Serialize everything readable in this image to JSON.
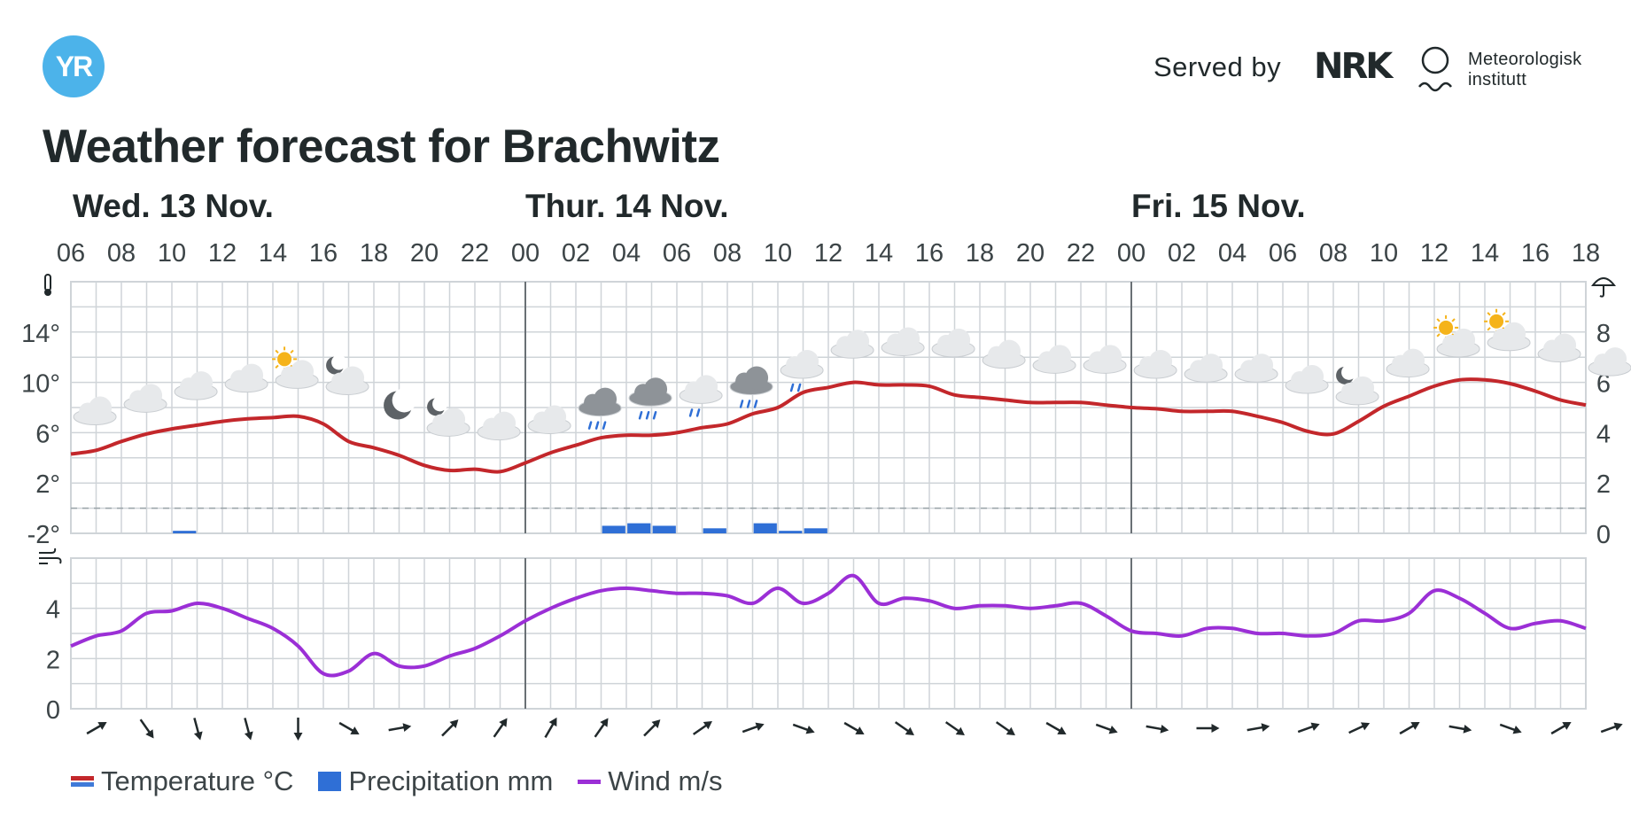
{
  "brand": {
    "logo": "YR",
    "served_by": "Served by",
    "nrk": "NRK",
    "met": [
      "Meteorologisk",
      "institutt"
    ]
  },
  "title": "Weather forecast for Brachwitz",
  "days": [
    {
      "label": "Wed. 13 Nov.",
      "start_hour_index": 0
    },
    {
      "label": "Thur. 14 Nov.",
      "start_hour_index": 18
    },
    {
      "label": "Fri. 15 Nov.",
      "start_hour_index": 42
    }
  ],
  "legend": {
    "temperature": "Temperature °C",
    "precipitation": "Precipitation mm",
    "wind": "Wind m/s"
  },
  "colors": {
    "temperature": "#c3272b",
    "temperature_cold": "#3f7ad8",
    "precipitation": "#2f6fd6",
    "wind": "#9b2fd6",
    "grid": "#cfd4d8",
    "day_line": "#6a7075"
  },
  "chart_data": [
    {
      "type": "line",
      "title": "",
      "x": [
        "06",
        "07",
        "08",
        "09",
        "10",
        "11",
        "12",
        "13",
        "14",
        "15",
        "16",
        "17",
        "18",
        "19",
        "20",
        "21",
        "22",
        "23",
        "00",
        "01",
        "02",
        "03",
        "04",
        "05",
        "06",
        "07",
        "08",
        "09",
        "10",
        "11",
        "12",
        "13",
        "14",
        "15",
        "16",
        "17",
        "18",
        "19",
        "20",
        "21",
        "22",
        "23",
        "00",
        "01",
        "02",
        "03",
        "04",
        "05",
        "06",
        "07",
        "08",
        "09",
        "10",
        "11",
        "12",
        "13",
        "14",
        "15",
        "16",
        "17",
        "18"
      ],
      "x_tick_labels": [
        "06",
        "08",
        "10",
        "12",
        "14",
        "16",
        "18",
        "20",
        "22",
        "00",
        "02",
        "04",
        "06",
        "08",
        "10",
        "12",
        "14",
        "16",
        "18",
        "20",
        "22",
        "00",
        "02",
        "04",
        "06",
        "08",
        "10",
        "12",
        "14",
        "16",
        "18"
      ],
      "y_left": {
        "unit": "°",
        "ticks": [
          14,
          10,
          6,
          2,
          -2
        ],
        "range": [
          -2,
          18
        ]
      },
      "y_right": {
        "unit": "mm",
        "ticks": [
          8,
          6,
          4,
          2,
          0
        ],
        "range": [
          0,
          10
        ]
      },
      "series": [
        {
          "name": "Temperature °C",
          "axis": "left",
          "values": [
            4.3,
            4.6,
            5.3,
            5.9,
            6.3,
            6.6,
            6.9,
            7.1,
            7.2,
            7.3,
            6.7,
            5.3,
            4.8,
            4.2,
            3.4,
            3.0,
            3.1,
            2.9,
            3.6,
            4.4,
            5.0,
            5.6,
            5.8,
            5.8,
            6.0,
            6.4,
            6.7,
            7.5,
            8.0,
            9.2,
            9.6,
            10.0,
            9.8,
            9.8,
            9.7,
            9.0,
            8.8,
            8.6,
            8.4,
            8.4,
            8.4,
            8.2,
            8.0,
            7.9,
            7.7,
            7.7,
            7.7,
            7.3,
            6.8,
            6.1,
            5.9,
            6.9,
            8.1,
            8.9,
            9.7,
            10.2,
            10.2,
            9.9,
            9.3,
            8.6,
            8.2
          ]
        },
        {
          "name": "Precipitation mm",
          "axis": "right",
          "type": "bar",
          "values": [
            0,
            0,
            0,
            0,
            0.1,
            0,
            0,
            0,
            0,
            0,
            0,
            0,
            0,
            0,
            0,
            0,
            0,
            0,
            0,
            0,
            0,
            0.3,
            0.4,
            0.3,
            0,
            0.2,
            0,
            0.4,
            0.1,
            0.2,
            0,
            0,
            0,
            0,
            0,
            0,
            0,
            0,
            0,
            0,
            0,
            0,
            0,
            0,
            0,
            0,
            0,
            0,
            0,
            0,
            0,
            0,
            0,
            0,
            0,
            0,
            0,
            0,
            0,
            0,
            0
          ]
        }
      ],
      "symbols": [
        "cloudy",
        "cloudy",
        "cloudy",
        "cloudy",
        "partlycloudy_day",
        "partlycloudy_night",
        "clear_night",
        "partlycloudy_night",
        "cloudy",
        "cloudy",
        "rain",
        "rain",
        "lightrain",
        "rain",
        "lightrain",
        "cloudy",
        "cloudy",
        "cloudy",
        "cloudy",
        "cloudy",
        "cloudy",
        "cloudy",
        "cloudy",
        "cloudy",
        "cloudy",
        "partlycloudy_night",
        "cloudy",
        "partlycloudy_day",
        "partlycloudy_day",
        "cloudy",
        "cloudy"
      ]
    },
    {
      "type": "line",
      "title": "",
      "y": {
        "ticks": [
          4,
          2,
          0
        ],
        "range": [
          0,
          6
        ]
      },
      "series": [
        {
          "name": "Wind m/s",
          "values": [
            2.5,
            2.9,
            3.1,
            3.8,
            3.9,
            4.2,
            4.0,
            3.6,
            3.2,
            2.5,
            1.4,
            1.5,
            2.2,
            1.7,
            1.7,
            2.1,
            2.4,
            2.9,
            3.5,
            4.0,
            4.4,
            4.7,
            4.8,
            4.7,
            4.6,
            4.6,
            4.5,
            4.2,
            4.8,
            4.2,
            4.6,
            5.3,
            4.2,
            4.4,
            4.3,
            4.0,
            4.1,
            4.1,
            4.0,
            4.1,
            4.2,
            3.7,
            3.1,
            3.0,
            2.9,
            3.2,
            3.2,
            3.0,
            3.0,
            2.9,
            3.0,
            3.5,
            3.5,
            3.8,
            4.7,
            4.4,
            3.8,
            3.2,
            3.4,
            3.5,
            3.2
          ]
        }
      ],
      "wind_direction_deg": [
        60,
        145,
        165,
        165,
        180,
        120,
        80,
        45,
        35,
        30,
        35,
        45,
        55,
        70,
        110,
        120,
        125,
        125,
        125,
        120,
        110,
        100,
        90,
        80,
        70,
        65,
        60,
        100,
        110,
        60,
        70
      ]
    }
  ]
}
